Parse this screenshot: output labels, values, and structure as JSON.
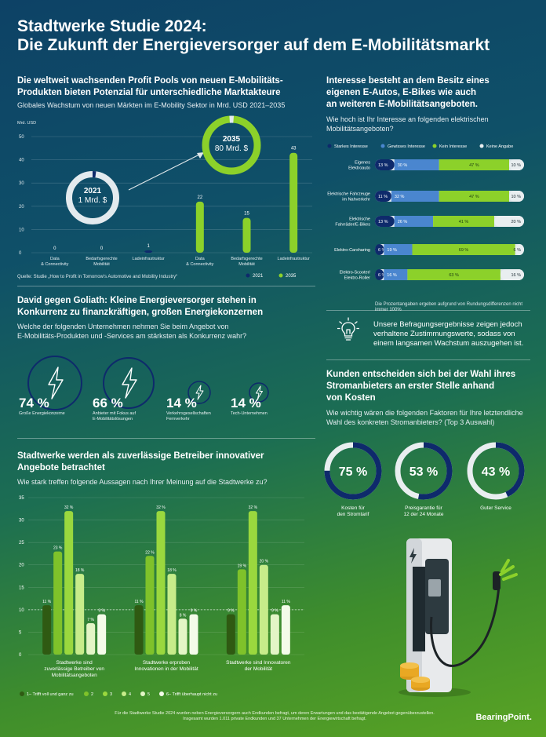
{
  "title_line1": "Stadtwerke Studie 2024:",
  "title_line2": "Die Zukunft der Energieversorger auf dem E-Mobilitätsmarkt",
  "colors": {
    "dark_blue": "#0e2a6b",
    "mid_blue": "#4a86cf",
    "green": "#8cd12a",
    "light_gray": "#e9eef0",
    "track": "#dde6ea"
  },
  "section1": {
    "heading_line1": "Die weltweit wachsenden Profit Pools von neuen E-Mobilitäts-",
    "heading_line2": "Produkten bieten Potenzial für unterschiedliche Marktakteure",
    "subtitle": "Globales Wachstum von neuen Märkten im E-Mobility Sektor in Mrd. USD 2021–2035",
    "source": "Quelle: Studie „How to Profit in Tomorrow's Automotive and Mobility Industry“",
    "bubble_2021_year": "2021",
    "bubble_2021_value": "1 Mrd. $",
    "bubble_2035_year": "2035",
    "bubble_2035_value": "80 Mrd. $"
  },
  "section2": {
    "heading_line1": "Interesse besteht an dem Besitz eines",
    "heading_line2": "eigenen E-Autos, E-Bikes wie auch",
    "heading_line3": "an weiteren E-Mobilitätsangeboten.",
    "question_line1": "Wie hoch ist Ihr Interesse an folgenden elektrischen",
    "question_line2": "Mobilitätsangeboten?",
    "note": "Die Prozentangaben ergeben aufgrund von Rundungsdifferenzen nicht immer 100%",
    "insight_line1": "Unsere Befragungsergebnisse zeigen jedoch",
    "insight_line2": "verhaltene Zustimmungswerte, sodass von",
    "insight_line3": "einem langsamen Wachstum auszugehen ist."
  },
  "section3": {
    "heading_line1": "David gegen Goliath: Kleine Energieversorger stehen in",
    "heading_line2": "Konkurrenz zu finanzkräftigen, großen Energiekonzernen",
    "question_line1": "Welche der folgenden Unternehmen nehmen Sie beim Angebot von",
    "question_line2": "E-Mobilitäts-Produkten und -Services am stärksten als Konkurrenz wahr?",
    "stats": [
      {
        "pct": "74 %",
        "label_line1": "Große Energiekonzerne",
        "label_line2": ""
      },
      {
        "pct": "66 %",
        "label_line1": "Anbieter mit Fokus auf",
        "label_line2": "E-Mobilitätslösungen"
      },
      {
        "pct": "14 %",
        "label_line1": "Verkehrsgesellschaften",
        "label_line2": "Fernverkehr"
      },
      {
        "pct": "14 %",
        "label_line1": "Tech-Unternehmen",
        "label_line2": ""
      }
    ]
  },
  "section4": {
    "heading_line1": "Kunden entscheiden sich bei der Wahl ihres",
    "heading_line2": "Stromanbieters an erster Stelle anhand",
    "heading_line3": "von Kosten",
    "question_line1": "Wie wichtig wären die folgenden Faktoren für Ihre letztendliche",
    "question_line2": "Wahl des konkreten Stromanbieters? (Top 3 Auswahl)",
    "donuts": [
      {
        "pct": "75 %",
        "value": 75,
        "label_line1": "Kosten für",
        "label_line2": "den Stromtarif"
      },
      {
        "pct": "53 %",
        "value": 53,
        "label_line1": "Preisgarantie für",
        "label_line2": "12 der 24 Monate"
      },
      {
        "pct": "43 %",
        "value": 43,
        "label_line1": "Guter Service",
        "label_line2": ""
      }
    ]
  },
  "section5": {
    "heading_line1": "Stadtwerke werden als zuverlässige Betreiber innovativer",
    "heading_line2": "Angebote betrachtet",
    "question": "Wie stark treffen folgende Aussagen nach Ihrer Meinung auf die Stadtwerke zu?"
  },
  "footer_line1": "Für die Stadtwerke Studie 2024 wurden neben Energieversorgern auch Endkunden befragt, um deren Erwartungen und das bestätigende Angebot gegenüberzustellen.",
  "footer_line2": "Insgesamt wurden 1.011 private Endkunden und 37 Unternehmen der Energiewirtschaft befragt.",
  "logo": "BearingPoint.",
  "chart_data": [
    {
      "type": "bar",
      "title": "Globales Wachstum von neuen Märkten im E-Mobility Sektor in Mrd. USD 2021–2035",
      "ylabel": "Mrd. USD",
      "ylim": [
        0,
        50
      ],
      "yticks": [
        "0",
        "10",
        "20",
        "30",
        "40",
        "50"
      ],
      "categories_2021": [
        "Data & Connectivity",
        "Bedarfsgerechte Mobilität",
        "Ladeinfrastruktur"
      ],
      "categories_2035": [
        "Data & Connectivity",
        "Bedarfsgerechte Mobilität",
        "Ladeinfrastruktur"
      ],
      "series": [
        {
          "name": "2021",
          "values": [
            0,
            0,
            1
          ],
          "labels": [
            "0",
            "0",
            "1"
          ]
        },
        {
          "name": "2035",
          "values": [
            22,
            15,
            43
          ],
          "labels": [
            "22",
            "15",
            "43"
          ]
        }
      ],
      "legend": "bottom-right"
    },
    {
      "type": "bar",
      "orientation": "horizontal-stacked",
      "title": "Wie hoch ist Ihr Interesse an folgenden elektrischen Mobilitätsangeboten?",
      "legend_entries": [
        "Starkes Interesse",
        "Gewisses Interesse",
        "Kein Interesse",
        "Keine Angabe"
      ],
      "categories": [
        "Eigenes Elektroauto",
        "Elektrische Fahrzeuge im Nahverkehr",
        "Elektrische Fahrräder/E-Bikes",
        "Elektro-Carsharing",
        "Elektro-Scooter/ Elektro-Roller"
      ],
      "series": [
        {
          "name": "Starkes Interesse",
          "values": [
            13,
            11,
            13,
            6,
            6
          ],
          "labels": [
            "13 %",
            "11 %",
            "13 %",
            "6 %",
            "6 %"
          ]
        },
        {
          "name": "Gewisses Interesse",
          "values": [
            30,
            32,
            26,
            19,
            16
          ],
          "labels": [
            "30 %",
            "32 %",
            "26 %",
            "19 %",
            "16 %"
          ]
        },
        {
          "name": "Kein Interesse",
          "values": [
            47,
            47,
            41,
            69,
            63
          ],
          "labels": [
            "47 %",
            "47 %",
            "41 %",
            "69 %",
            "63 %"
          ]
        },
        {
          "name": "Keine Angabe",
          "values": [
            10,
            10,
            20,
            6,
            16
          ],
          "labels": [
            "10 %",
            "10 %",
            "20 %",
            "6 %",
            "16 %"
          ]
        }
      ]
    },
    {
      "type": "bar",
      "title": "Wie stark treffen folgende Aussagen nach Ihrer Meinung auf die Stadtwerke zu?",
      "ylim": [
        0,
        35
      ],
      "yticks": [
        "0",
        "5",
        "10",
        "15",
        "20",
        "25",
        "30",
        "35"
      ],
      "reference_line": 10,
      "categories": [
        "Stadtwerke sind zuverlässige Betreiber von Mobilitätsangeboten",
        "Stadtwerke erproben Innovationen in der Mobilität",
        "Stadtwerke sind Innovatoren der Mobilität"
      ],
      "category_lines": [
        [
          "Stadtwerke sind",
          "zuverlässige Betreiber von",
          "Mobilitätsangeboten"
        ],
        [
          "Stadtwerke erproben",
          "Innovationen in der Mobilität"
        ],
        [
          "Stadtwerke sind Innovatoren",
          "der Mobilität"
        ]
      ],
      "series": [
        {
          "name": "1– Trifft voll und ganz zu",
          "values": [
            11,
            11,
            9
          ],
          "labels": [
            "11 %",
            "11 %",
            "9 %"
          ]
        },
        {
          "name": "2",
          "values": [
            23,
            22,
            19
          ],
          "labels": [
            "23 %",
            "22 %",
            "19 %"
          ]
        },
        {
          "name": "3",
          "values": [
            32,
            32,
            32
          ],
          "labels": [
            "32 %",
            "32 %",
            "32 %"
          ]
        },
        {
          "name": "4",
          "values": [
            18,
            18,
            20
          ],
          "labels": [
            "18 %",
            "18 %",
            "20 %"
          ]
        },
        {
          "name": "5",
          "values": [
            7,
            8,
            9
          ],
          "labels": [
            "7 %",
            "8 %",
            "9 %"
          ]
        },
        {
          "name": "6– Trifft überhaupt nicht zu",
          "values": [
            9,
            9,
            11
          ],
          "labels": [
            "9 %",
            "9 %",
            "11 %"
          ]
        }
      ],
      "legend": "bottom"
    }
  ]
}
